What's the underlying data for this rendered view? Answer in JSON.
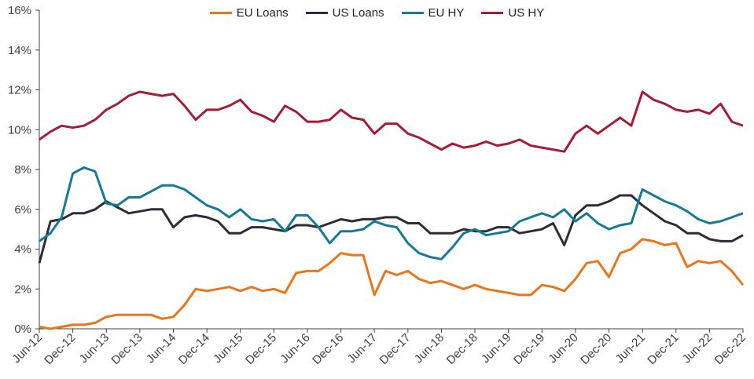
{
  "chart_data": {
    "type": "line",
    "title": "",
    "xlabel": "",
    "ylabel": "",
    "ylim": [
      0,
      16
    ],
    "yticks": [
      "0%",
      "2%",
      "4%",
      "6%",
      "8%",
      "10%",
      "12%",
      "14%",
      "16%"
    ],
    "grid": false,
    "legend_position": "top-center",
    "x_unit": "months since Jun-12, sampled every 2 months",
    "x": [
      0,
      2,
      4,
      6,
      8,
      10,
      12,
      14,
      16,
      18,
      20,
      22,
      24,
      26,
      28,
      30,
      32,
      34,
      36,
      38,
      40,
      42,
      44,
      46,
      48,
      50,
      52,
      54,
      56,
      58,
      60,
      62,
      64,
      66,
      68,
      70,
      72,
      74,
      76,
      78,
      80,
      82,
      84,
      86,
      88,
      90,
      92,
      94,
      96,
      98,
      100,
      102,
      104,
      106,
      108,
      110,
      112,
      114,
      116,
      118,
      120,
      122,
      124,
      126
    ],
    "categories": [
      "Jun-12",
      "Dec-12",
      "Jun-13",
      "Dec-13",
      "Jun-14",
      "Dec-14",
      "Jun-15",
      "Dec-15",
      "Jun-16",
      "Dec-16",
      "Jun-17",
      "Dec-17",
      "Jun-18",
      "Dec-18",
      "Jun-19",
      "Dec-19",
      "Jun-20",
      "Dec-20",
      "Jun-21",
      "Dec-21",
      "Jun-22",
      "Dec-22"
    ],
    "series": [
      {
        "name": "EU Loans",
        "color": "#E8761B",
        "values": [
          0.1,
          0.0,
          0.1,
          0.2,
          0.2,
          0.3,
          0.6,
          0.7,
          0.7,
          0.7,
          0.7,
          0.5,
          0.6,
          1.2,
          2.0,
          1.9,
          2.0,
          2.1,
          1.9,
          2.1,
          1.9,
          2.0,
          1.8,
          2.8,
          2.9,
          2.9,
          3.3,
          3.8,
          3.7,
          3.7,
          1.7,
          2.9,
          2.7,
          2.9,
          2.5,
          2.3,
          2.4,
          2.2,
          2.0,
          2.2,
          2.0,
          1.9,
          1.8,
          1.7,
          1.7,
          2.2,
          2.1,
          1.9,
          2.5,
          3.3,
          3.4,
          2.6,
          3.8,
          4.0,
          4.5,
          4.4,
          4.2,
          4.3,
          3.1,
          3.4,
          3.3,
          3.4,
          2.9,
          2.2
        ]
      },
      {
        "name": "US Loans",
        "color": "#2B2D3A",
        "values": [
          3.3,
          5.4,
          5.5,
          5.8,
          5.8,
          6.0,
          6.4,
          6.1,
          5.8,
          5.9,
          6.0,
          6.0,
          5.1,
          5.6,
          5.7,
          5.6,
          5.4,
          4.8,
          4.8,
          5.1,
          5.1,
          5.0,
          4.9,
          5.2,
          5.2,
          5.1,
          5.3,
          5.5,
          5.4,
          5.5,
          5.5,
          5.6,
          5.6,
          5.3,
          5.3,
          4.8,
          4.8,
          4.8,
          5.0,
          4.9,
          4.9,
          5.1,
          5.1,
          4.8,
          4.9,
          5.0,
          5.3,
          4.2,
          5.7,
          6.2,
          6.2,
          6.4,
          6.7,
          6.7,
          6.2,
          5.8,
          5.4,
          5.2,
          4.8,
          4.8,
          4.5,
          4.4,
          4.4,
          4.7
        ]
      },
      {
        "name": "EU HY",
        "color": "#147A96",
        "values": [
          4.4,
          4.8,
          5.6,
          7.8,
          8.1,
          7.9,
          6.3,
          6.2,
          6.6,
          6.6,
          6.9,
          7.2,
          7.2,
          7.0,
          6.6,
          6.2,
          6.0,
          5.6,
          6.0,
          5.5,
          5.4,
          5.5,
          4.9,
          5.7,
          5.7,
          5.1,
          4.3,
          4.9,
          4.9,
          5.0,
          5.4,
          5.2,
          5.1,
          4.3,
          3.8,
          3.6,
          3.5,
          4.1,
          4.8,
          5.0,
          4.7,
          4.8,
          4.9,
          5.4,
          5.6,
          5.8,
          5.6,
          6.0,
          5.4,
          5.8,
          5.3,
          5.0,
          5.2,
          5.3,
          7.0,
          6.7,
          6.4,
          6.2,
          5.9,
          5.5,
          5.3,
          5.4,
          5.6,
          5.8
        ]
      },
      {
        "name": "US HY",
        "color": "#A51C36",
        "values": [
          9.5,
          9.9,
          10.2,
          10.1,
          10.2,
          10.5,
          11.0,
          11.3,
          11.7,
          11.9,
          11.8,
          11.7,
          11.8,
          11.2,
          10.5,
          11.0,
          11.0,
          11.2,
          11.5,
          10.9,
          10.7,
          10.4,
          11.2,
          10.9,
          10.4,
          10.4,
          10.5,
          11.0,
          10.6,
          10.5,
          9.8,
          10.3,
          10.3,
          9.8,
          9.6,
          9.3,
          9.0,
          9.3,
          9.1,
          9.2,
          9.4,
          9.2,
          9.3,
          9.5,
          9.2,
          9.1,
          9.0,
          8.9,
          9.8,
          10.2,
          9.8,
          10.2,
          10.6,
          10.2,
          11.9,
          11.5,
          11.3,
          11.0,
          10.9,
          11.0,
          10.8,
          11.3,
          10.4,
          10.2
        ]
      }
    ]
  }
}
